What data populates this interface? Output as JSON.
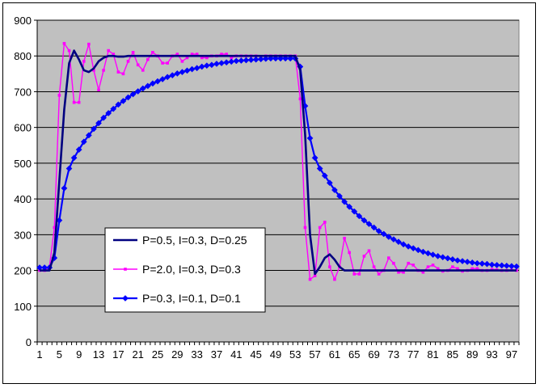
{
  "chart_data": {
    "type": "line",
    "title": "",
    "xlabel": "",
    "ylabel": "",
    "ylim": [
      0,
      900
    ],
    "y_ticks": [
      0,
      100,
      200,
      300,
      400,
      500,
      600,
      700,
      800,
      900
    ],
    "x_ticks": [
      1,
      5,
      9,
      13,
      17,
      21,
      25,
      29,
      33,
      37,
      41,
      45,
      49,
      53,
      57,
      61,
      65,
      69,
      73,
      77,
      81,
      85,
      89,
      93,
      97
    ],
    "x_range": [
      1,
      98
    ],
    "grid": "horizontal",
    "legend_position": "bottom-left",
    "plot_background": "#C0C0C0",
    "series": [
      {
        "name": "P=0.5, I=0.3, D=0.25",
        "color": "#000080",
        "marker": "none",
        "x": [
          1,
          2,
          3,
          4,
          5,
          6,
          7,
          8,
          9,
          10,
          11,
          12,
          13,
          14,
          15,
          16,
          17,
          18,
          19,
          20,
          21,
          22,
          23,
          24,
          25,
          26,
          27,
          28,
          29,
          30,
          31,
          32,
          33,
          34,
          35,
          36,
          37,
          38,
          39,
          40,
          41,
          42,
          43,
          44,
          45,
          46,
          47,
          48,
          49,
          50,
          51,
          52,
          53,
          54,
          55,
          56,
          57,
          58,
          59,
          60,
          61,
          62,
          63,
          64,
          65,
          66,
          67,
          68,
          69,
          70,
          71,
          72,
          73,
          74,
          75,
          76,
          77,
          78,
          79,
          80,
          81,
          82,
          83,
          84,
          85,
          86,
          87,
          88,
          89,
          90,
          91,
          92,
          93,
          94,
          95,
          96,
          97,
          98
        ],
        "values": [
          200,
          200,
          200,
          250,
          450,
          650,
          780,
          815,
          790,
          760,
          755,
          765,
          785,
          795,
          800,
          800,
          798,
          798,
          800,
          800,
          800,
          800,
          800,
          800,
          800,
          800,
          800,
          800,
          800,
          800,
          800,
          800,
          800,
          800,
          800,
          800,
          800,
          800,
          800,
          800,
          800,
          800,
          800,
          800,
          800,
          800,
          800,
          800,
          800,
          800,
          800,
          800,
          800,
          760,
          580,
          300,
          190,
          210,
          235,
          245,
          230,
          210,
          200,
          200,
          200,
          200,
          200,
          200,
          200,
          200,
          200,
          200,
          200,
          200,
          200,
          200,
          200,
          200,
          200,
          200,
          200,
          200,
          200,
          200,
          200,
          200,
          200,
          200,
          200,
          200,
          200,
          200,
          200,
          200,
          200,
          200,
          200,
          200
        ]
      },
      {
        "name": "P=2.0, I=0.3, D=0.3",
        "color": "#FF00FF",
        "marker": "dot",
        "x": [
          1,
          2,
          3,
          4,
          5,
          6,
          7,
          8,
          9,
          10,
          11,
          12,
          13,
          14,
          15,
          16,
          17,
          18,
          19,
          20,
          21,
          22,
          23,
          24,
          25,
          26,
          27,
          28,
          29,
          30,
          31,
          32,
          33,
          34,
          35,
          36,
          37,
          38,
          39,
          40,
          41,
          42,
          43,
          44,
          45,
          46,
          47,
          48,
          49,
          50,
          51,
          52,
          53,
          54,
          55,
          56,
          57,
          58,
          59,
          60,
          61,
          62,
          63,
          64,
          65,
          66,
          67,
          68,
          69,
          70,
          71,
          72,
          73,
          74,
          75,
          76,
          77,
          78,
          79,
          80,
          81,
          82,
          83,
          84,
          85,
          86,
          87,
          88,
          89,
          90,
          91,
          92,
          93,
          94,
          95,
          96,
          97,
          98
        ],
        "values": [
          200,
          200,
          210,
          320,
          690,
          835,
          815,
          670,
          670,
          785,
          833,
          760,
          705,
          760,
          815,
          805,
          755,
          750,
          785,
          810,
          775,
          760,
          790,
          810,
          800,
          780,
          780,
          800,
          805,
          785,
          795,
          805,
          805,
          795,
          795,
          800,
          800,
          805,
          805,
          795,
          800,
          800,
          800,
          800,
          800,
          798,
          800,
          800,
          800,
          800,
          800,
          800,
          800,
          680,
          320,
          175,
          185,
          320,
          335,
          210,
          175,
          210,
          290,
          250,
          190,
          190,
          240,
          255,
          210,
          190,
          200,
          235,
          220,
          195,
          195,
          220,
          215,
          200,
          195,
          210,
          215,
          205,
          198,
          200,
          210,
          205,
          198,
          200,
          205,
          205,
          200,
          200,
          203,
          202,
          200,
          200,
          201,
          200
        ]
      },
      {
        "name": "P=0.3, I=0.1, D=0.1",
        "color": "#0000FF",
        "marker": "diamond",
        "x": [
          1,
          2,
          3,
          4,
          5,
          6,
          7,
          8,
          9,
          10,
          11,
          12,
          13,
          14,
          15,
          16,
          17,
          18,
          19,
          20,
          21,
          22,
          23,
          24,
          25,
          26,
          27,
          28,
          29,
          30,
          31,
          32,
          33,
          34,
          35,
          36,
          37,
          38,
          39,
          40,
          41,
          42,
          43,
          44,
          45,
          46,
          47,
          48,
          49,
          50,
          51,
          52,
          53,
          54,
          55,
          56,
          57,
          58,
          59,
          60,
          61,
          62,
          63,
          64,
          65,
          66,
          67,
          68,
          69,
          70,
          71,
          72,
          73,
          74,
          75,
          76,
          77,
          78,
          79,
          80,
          81,
          82,
          83,
          84,
          85,
          86,
          87,
          88,
          89,
          90,
          91,
          92,
          93,
          94,
          95,
          96,
          97,
          98
        ],
        "values": [
          208,
          208,
          208,
          235,
          340,
          430,
          485,
          515,
          538,
          560,
          578,
          596,
          612,
          627,
          640,
          652,
          664,
          674,
          684,
          693,
          701,
          709,
          716,
          723,
          729,
          735,
          741,
          746,
          751,
          755,
          759,
          763,
          766,
          770,
          773,
          775,
          778,
          780,
          782,
          784,
          786,
          787,
          788,
          789,
          790,
          791,
          792,
          793,
          793,
          793,
          793,
          793,
          793,
          770,
          660,
          570,
          515,
          485,
          465,
          445,
          425,
          408,
          392,
          378,
          365,
          352,
          340,
          330,
          320,
          310,
          302,
          294,
          287,
          280,
          273,
          267,
          262,
          257,
          252,
          248,
          244,
          240,
          237,
          234,
          231,
          228,
          226,
          224,
          222,
          220,
          219,
          218,
          216,
          215,
          214,
          213,
          212,
          211
        ]
      }
    ]
  }
}
